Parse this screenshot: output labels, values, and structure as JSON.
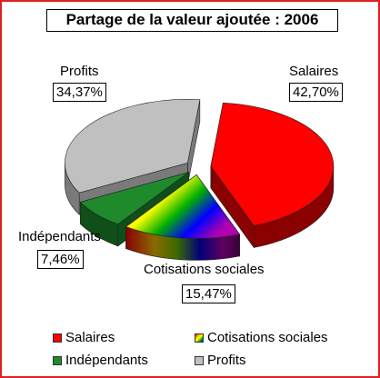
{
  "chart_data": {
    "type": "pie",
    "title": "Partage de la valeur ajoutée : 2006",
    "slices": [
      {
        "name": "Salaires",
        "value": 42.7,
        "label": "42,70%",
        "color": "#ff0000",
        "side_color": "#8b0000"
      },
      {
        "name": "Cotisations sociales",
        "value": 15.47,
        "label": "15,47%",
        "color": "rainbow",
        "side_color": "rainbow"
      },
      {
        "name": "Indépendants",
        "value": 7.46,
        "label": "7,46%",
        "color": "#1e8a2c",
        "side_color": "#0f4f18"
      },
      {
        "name": "Profits",
        "value": 34.37,
        "label": "34,37%",
        "color": "#c0c0c0",
        "side_color": "#7a7a7a"
      }
    ],
    "legend": {
      "placement": "bottom",
      "entries": [
        "Salaires",
        "Cotisations sociales",
        "Indépendants",
        "Profits"
      ]
    }
  }
}
